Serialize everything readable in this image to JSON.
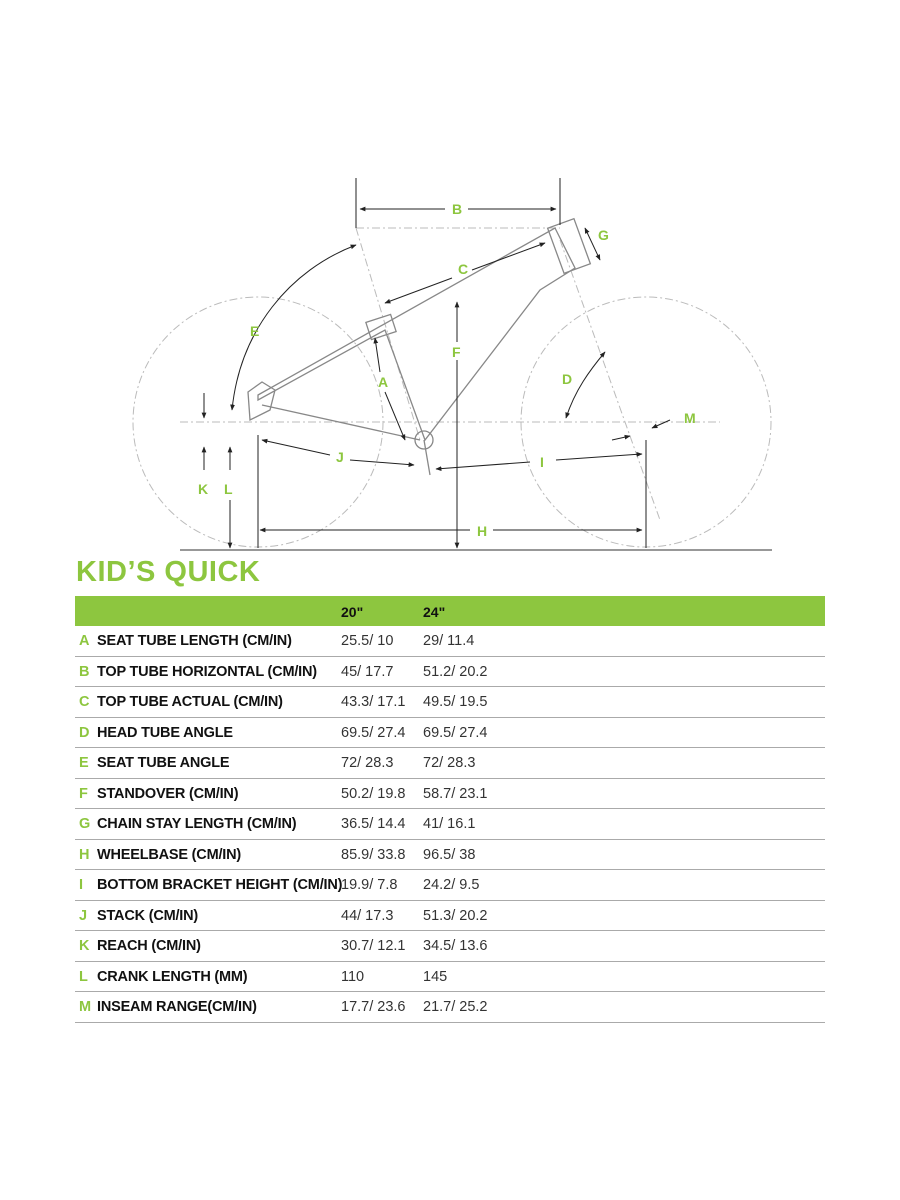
{
  "title": "KID’S QUICK",
  "accent_color": "#8dc63f",
  "table": {
    "columns": [
      "20\"",
      "24\""
    ],
    "rows": [
      {
        "letter": "A",
        "name": "SEAT TUBE LENGTH (CM/IN)",
        "v": [
          "25.5/ 10",
          "29/ 11.4"
        ]
      },
      {
        "letter": "B",
        "name": "TOP TUBE HORIZONTAL (CM/IN)",
        "v": [
          "45/ 17.7",
          "51.2/ 20.2"
        ]
      },
      {
        "letter": "C",
        "name": "TOP TUBE ACTUAL (CM/IN)",
        "v": [
          "43.3/ 17.1",
          "49.5/ 19.5"
        ]
      },
      {
        "letter": "D",
        "name": "HEAD TUBE ANGLE",
        "v": [
          "69.5/ 27.4",
          "69.5/ 27.4"
        ]
      },
      {
        "letter": "E",
        "name": "SEAT TUBE ANGLE",
        "v": [
          "72/ 28.3",
          "72/ 28.3"
        ]
      },
      {
        "letter": "F",
        "name": "STANDOVER (CM/IN)",
        "v": [
          "50.2/ 19.8",
          "58.7/ 23.1"
        ]
      },
      {
        "letter": "G",
        "name": "CHAIN STAY LENGTH (CM/IN)",
        "v": [
          "36.5/ 14.4",
          "41/ 16.1"
        ]
      },
      {
        "letter": "H",
        "name": "WHEELBASE (CM/IN)",
        "v": [
          "85.9/ 33.8",
          "96.5/ 38"
        ]
      },
      {
        "letter": "I",
        "name": "BOTTOM BRACKET HEIGHT (CM/IN)",
        "v": [
          "19.9/ 7.8",
          "24.2/ 9.5"
        ]
      },
      {
        "letter": "J",
        "name": "STACK (CM/IN)",
        "v": [
          "44/ 17.3",
          "51.3/ 20.2"
        ]
      },
      {
        "letter": "K",
        "name": "REACH (CM/IN)",
        "v": [
          "30.7/ 12.1",
          "34.5/ 13.6"
        ]
      },
      {
        "letter": "L",
        "name": "CRANK LENGTH (MM)",
        "v": [
          "110",
          "145"
        ]
      },
      {
        "letter": "M",
        "name": "INSEAM RANGE(CM/IN)",
        "v": [
          "17.7/ 23.6",
          "21.7/ 25.2"
        ]
      }
    ]
  },
  "diagram_labels": {
    "A": "A",
    "B": "B",
    "C": "C",
    "D": "D",
    "E": "E",
    "F": "F",
    "G": "G",
    "H": "H",
    "I": "I",
    "J": "J",
    "K": "K",
    "L": "L",
    "M": "M"
  }
}
